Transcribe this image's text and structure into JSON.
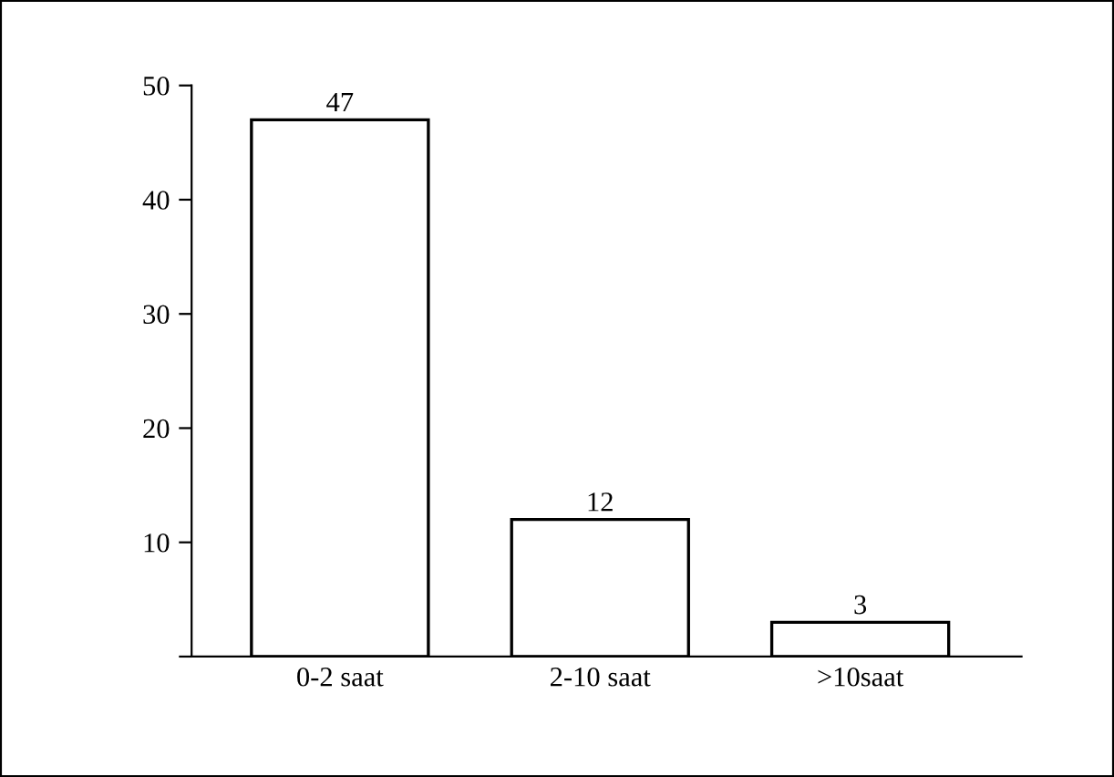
{
  "chart_data": {
    "type": "bar",
    "categories": [
      "0-2 saat",
      "2-10 saat",
      ">10saat"
    ],
    "values": [
      47,
      12,
      3
    ],
    "color": "#ffffff",
    "ylim": [
      0,
      50
    ],
    "yticks": [
      {
        "value": 0,
        "label": null
      },
      10,
      20,
      30,
      40,
      50
    ],
    "data_labels": true,
    "grid": false,
    "legend": false
  }
}
